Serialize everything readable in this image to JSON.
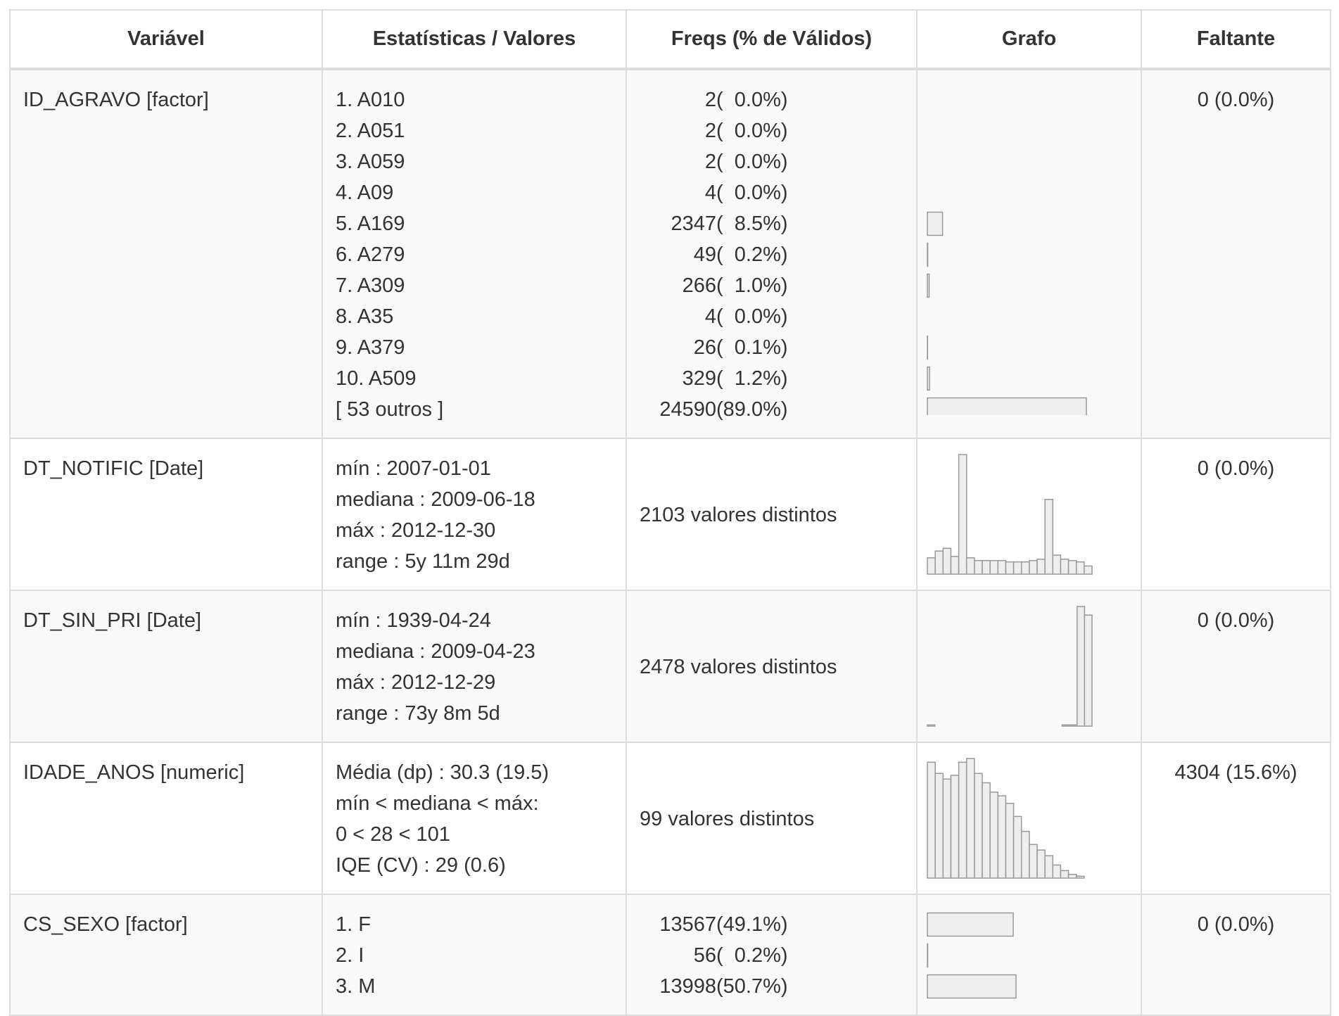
{
  "headers": [
    "Variável",
    "Estatísticas / Valores",
    "Freqs (% de Válidos)",
    "Grafo",
    "Faltante"
  ],
  "rows": [
    {
      "variable": "ID_AGRAVO [factor]",
      "stats": [
        "1. A010",
        "2. A051",
        "3. A059",
        "4. A09",
        "5. A169",
        "6. A279",
        "7. A309",
        "8. A35",
        "9. A379",
        "10. A509",
        "[ 53 outros ]"
      ],
      "freqs": [
        {
          "n": "2",
          "pct": "(  0.0%)"
        },
        {
          "n": "2",
          "pct": "(  0.0%)"
        },
        {
          "n": "2",
          "pct": "(  0.0%)"
        },
        {
          "n": "4",
          "pct": "(  0.0%)"
        },
        {
          "n": "2347",
          "pct": "(  8.5%)"
        },
        {
          "n": "49",
          "pct": "(  0.2%)"
        },
        {
          "n": "266",
          "pct": "(  1.0%)"
        },
        {
          "n": "4",
          "pct": "(  0.0%)"
        },
        {
          "n": "26",
          "pct": "(  0.1%)"
        },
        {
          "n": "329",
          "pct": "(  1.2%)"
        },
        {
          "n": "24590",
          "pct": "(89.0%)"
        }
      ],
      "missing": "0 (0.0%)"
    },
    {
      "variable": "DT_NOTIFIC [Date]",
      "stats": [
        "mín : 2007-01-01",
        "mediana : 2009-06-18",
        "máx : 2012-12-30",
        "range : 5y 11m 29d"
      ],
      "distinct": "2103 valores distintos",
      "missing": "0 (0.0%)"
    },
    {
      "variable": "DT_SIN_PRI [Date]",
      "stats": [
        "mín : 1939-04-24",
        "mediana : 2009-04-23",
        "máx : 2012-12-29",
        "range : 73y 8m 5d"
      ],
      "distinct": "2478 valores distintos",
      "missing": "0 (0.0%)"
    },
    {
      "variable": "IDADE_ANOS [numeric]",
      "stats": [
        "Média (dp) : 30.3 (19.5)",
        "mín < mediana < máx:",
        "0 < 28 < 101",
        "IQE (CV) : 29 (0.6)"
      ],
      "distinct": "99 valores distintos",
      "missing": "4304 (15.6%)"
    },
    {
      "variable": "CS_SEXO [factor]",
      "stats": [
        "1. F",
        "2. I",
        "3. M"
      ],
      "freqs": [
        {
          "n": "13567",
          "pct": "(49.1%)"
        },
        {
          "n": "56",
          "pct": "(  0.2%)"
        },
        {
          "n": "13998",
          "pct": "(50.7%)"
        }
      ],
      "missing": "0 (0.0%)"
    }
  ],
  "chart_data": [
    {
      "type": "bar",
      "orientation": "horizontal",
      "variable": "ID_AGRAVO",
      "categories": [
        "A010",
        "A051",
        "A059",
        "A09",
        "A169",
        "A279",
        "A309",
        "A35",
        "A379",
        "A509",
        "[ 53 outros ]"
      ],
      "values": [
        0.0,
        0.0,
        0.0,
        0.0,
        8.5,
        0.2,
        1.0,
        0.0,
        0.1,
        1.2,
        89.0
      ]
    },
    {
      "type": "bar",
      "variable": "DT_NOTIFIC",
      "values": [
        12,
        17,
        19,
        13,
        88,
        12,
        10,
        10,
        10,
        10,
        9,
        9,
        9,
        10,
        11,
        55,
        14,
        11,
        10,
        9,
        6
      ]
    },
    {
      "type": "bar",
      "variable": "DT_SIN_PRI",
      "values": [
        1,
        0,
        0,
        0,
        0,
        0,
        0,
        0,
        0,
        0,
        0,
        0,
        0,
        0,
        0,
        0,
        0,
        0,
        1,
        1,
        98,
        91
      ]
    },
    {
      "type": "bar",
      "variable": "IDADE_ANOS",
      "values": [
        62,
        56,
        53,
        55,
        62,
        64,
        56,
        51,
        46,
        44,
        40,
        33,
        25,
        18,
        15,
        12,
        7,
        4,
        2,
        1,
        0
      ]
    },
    {
      "type": "bar",
      "orientation": "horizontal",
      "variable": "CS_SEXO",
      "categories": [
        "F",
        "I",
        "M"
      ],
      "values": [
        49.1,
        0.2,
        50.7
      ]
    }
  ]
}
